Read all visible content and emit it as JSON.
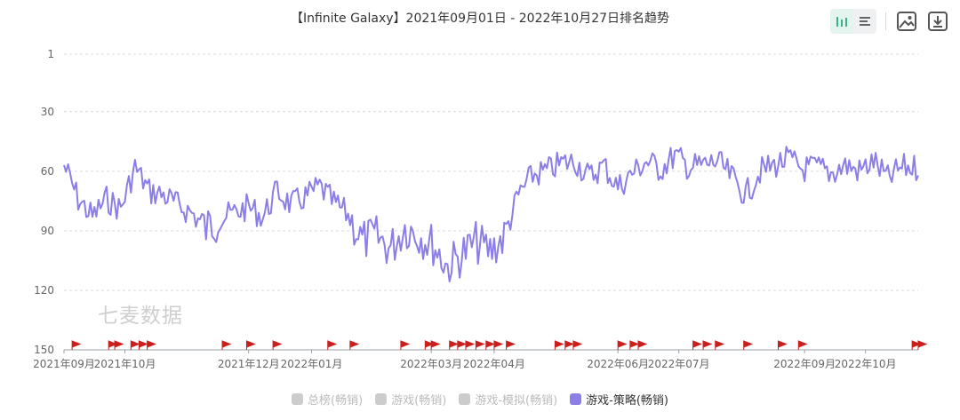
{
  "title": "【Infinite Galaxy】2021年09月01日 - 2022年10月27日排名趋势",
  "watermark": "七麦数据",
  "toolbar": {
    "icons": [
      "bar-chart-icon",
      "list-icon",
      "image-icon",
      "download-icon"
    ]
  },
  "colors": {
    "series": "#8b7ee6",
    "grid": "#d9d9d9",
    "axis": "#999999",
    "flag": "#c9201e",
    "legend_inactive": "#cccccc",
    "toolbar_active": "#3bb18a"
  },
  "legend": [
    {
      "label": "总榜(畅销)",
      "active": false,
      "color": "#cccccc"
    },
    {
      "label": "游戏(畅销)",
      "active": false,
      "color": "#cccccc"
    },
    {
      "label": "游戏-模拟(畅销)",
      "active": false,
      "color": "#cccccc"
    },
    {
      "label": "游戏-策略(畅销)",
      "active": true,
      "color": "#8b7ee6"
    }
  ],
  "chart_data": {
    "type": "line",
    "title": "【Infinite Galaxy】2021年09月01日 - 2022年10月27日排名趋势",
    "y_inverted": true,
    "ylim": [
      1,
      150
    ],
    "y_ticks": [
      1,
      30,
      60,
      90,
      120,
      150
    ],
    "x_tick_labels": [
      "2021年09月",
      "2021年10月",
      "2021年12月",
      "2022年01月",
      "2022年03月",
      "2022年04月",
      "2022年06月",
      "2022年07月",
      "2022年09月",
      "2022年10月"
    ],
    "x_tick_dates": [
      "2021-09-01",
      "2021-10-01",
      "2021-12-01",
      "2022-01-01",
      "2022-03-01",
      "2022-04-01",
      "2022-06-01",
      "2022-07-01",
      "2022-09-01",
      "2022-10-01"
    ],
    "grid": true,
    "legend_position": "bottom",
    "series": [
      {
        "name": "游戏-策略(畅销)",
        "sample_dates": [
          "2021-09-01",
          "2021-09-08",
          "2021-09-15",
          "2021-09-22",
          "2021-09-29",
          "2021-10-06",
          "2021-10-13",
          "2021-10-20",
          "2021-10-27",
          "2021-11-03",
          "2021-11-10",
          "2021-11-17",
          "2021-11-24",
          "2021-12-01",
          "2021-12-08",
          "2021-12-15",
          "2021-12-22",
          "2021-12-29",
          "2022-01-05",
          "2022-01-12",
          "2022-01-19",
          "2022-01-26",
          "2022-02-02",
          "2022-02-09",
          "2022-02-16",
          "2022-02-23",
          "2022-03-02",
          "2022-03-09",
          "2022-03-16",
          "2022-03-23",
          "2022-03-30",
          "2022-04-06",
          "2022-04-13",
          "2022-04-20",
          "2022-04-27",
          "2022-05-04",
          "2022-05-11",
          "2022-05-18",
          "2022-05-25",
          "2022-06-01",
          "2022-06-08",
          "2022-06-15",
          "2022-06-22",
          "2022-06-29",
          "2022-07-06",
          "2022-07-13",
          "2022-07-20",
          "2022-07-27",
          "2022-08-03",
          "2022-08-10",
          "2022-08-17",
          "2022-08-24",
          "2022-08-31",
          "2022-09-07",
          "2022-09-14",
          "2022-09-21",
          "2022-09-28",
          "2022-10-05",
          "2022-10-12",
          "2022-10-19",
          "2022-10-27"
        ],
        "values": [
          57,
          74,
          83,
          74,
          79,
          58,
          70,
          72,
          77,
          81,
          89,
          84,
          81,
          78,
          83,
          70,
          77,
          73,
          68,
          76,
          82,
          95,
          93,
          99,
          88,
          92,
          97,
          108,
          102,
          96,
          100,
          93,
          72,
          62,
          60,
          56,
          55,
          63,
          57,
          68,
          61,
          55,
          59,
          52,
          58,
          57,
          55,
          63,
          72,
          60,
          57,
          54,
          59,
          58,
          61,
          57,
          60,
          55,
          64,
          58,
          58
        ]
      }
    ]
  }
}
